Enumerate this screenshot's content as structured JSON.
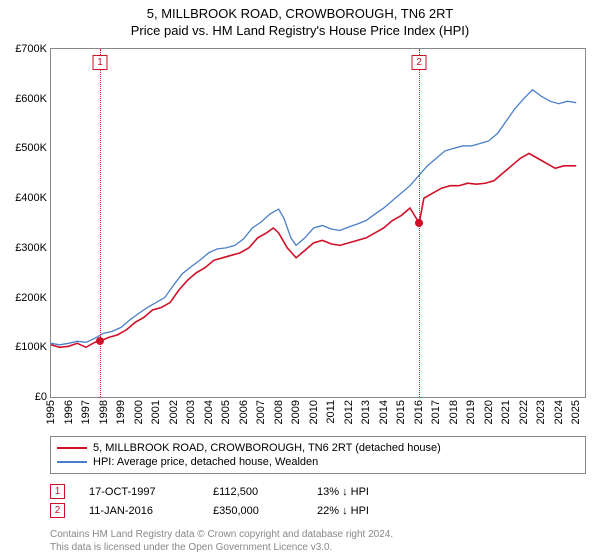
{
  "title": {
    "line1": "5, MILLBROOK ROAD, CROWBOROUGH, TN6 2RT",
    "line2": "Price paid vs. HM Land Registry's House Price Index (HPI)"
  },
  "chart": {
    "type": "line",
    "background_color": "#ffffff",
    "border_color": "#888888",
    "x_min": 1995,
    "x_max": 2025.5,
    "y_min": 0,
    "y_max": 700000,
    "y_ticks": [
      0,
      100000,
      200000,
      300000,
      400000,
      500000,
      600000,
      700000
    ],
    "y_tick_labels": [
      "£0",
      "£100K",
      "£200K",
      "£300K",
      "£400K",
      "£500K",
      "£600K",
      "£700K"
    ],
    "x_ticks": [
      1995,
      1996,
      1997,
      1998,
      1999,
      2000,
      2001,
      2002,
      2003,
      2004,
      2005,
      2006,
      2007,
      2008,
      2009,
      2010,
      2011,
      2012,
      2013,
      2014,
      2015,
      2016,
      2017,
      2018,
      2019,
      2020,
      2021,
      2022,
      2023,
      2024,
      2025
    ],
    "series": [
      {
        "name": "price_paid",
        "label": "5, MILLBROOK ROAD, CROWBOROUGH, TN6 2RT (detached house)",
        "color": "#d01027",
        "line_width": 1.6,
        "data": [
          [
            1995.0,
            105000
          ],
          [
            1995.5,
            100000
          ],
          [
            1996.0,
            102000
          ],
          [
            1996.5,
            108000
          ],
          [
            1997.0,
            100000
          ],
          [
            1997.5,
            110000
          ],
          [
            1997.8,
            112500
          ],
          [
            1998.3,
            120000
          ],
          [
            1998.8,
            125000
          ],
          [
            1999.3,
            135000
          ],
          [
            1999.8,
            150000
          ],
          [
            2000.3,
            160000
          ],
          [
            2000.8,
            175000
          ],
          [
            2001.3,
            180000
          ],
          [
            2001.8,
            190000
          ],
          [
            2002.3,
            215000
          ],
          [
            2002.8,
            235000
          ],
          [
            2003.3,
            250000
          ],
          [
            2003.8,
            260000
          ],
          [
            2004.3,
            275000
          ],
          [
            2004.8,
            280000
          ],
          [
            2005.3,
            285000
          ],
          [
            2005.8,
            290000
          ],
          [
            2006.3,
            300000
          ],
          [
            2006.8,
            320000
          ],
          [
            2007.3,
            330000
          ],
          [
            2007.7,
            340000
          ],
          [
            2008.0,
            330000
          ],
          [
            2008.5,
            300000
          ],
          [
            2009.0,
            280000
          ],
          [
            2009.5,
            295000
          ],
          [
            2010.0,
            310000
          ],
          [
            2010.5,
            315000
          ],
          [
            2011.0,
            308000
          ],
          [
            2011.5,
            305000
          ],
          [
            2012.0,
            310000
          ],
          [
            2012.5,
            315000
          ],
          [
            2013.0,
            320000
          ],
          [
            2013.5,
            330000
          ],
          [
            2014.0,
            340000
          ],
          [
            2014.5,
            355000
          ],
          [
            2015.0,
            365000
          ],
          [
            2015.5,
            380000
          ],
          [
            2016.03,
            350000
          ],
          [
            2016.3,
            400000
          ],
          [
            2016.8,
            410000
          ],
          [
            2017.3,
            420000
          ],
          [
            2017.8,
            425000
          ],
          [
            2018.3,
            425000
          ],
          [
            2018.8,
            430000
          ],
          [
            2019.3,
            428000
          ],
          [
            2019.8,
            430000
          ],
          [
            2020.3,
            435000
          ],
          [
            2020.8,
            450000
          ],
          [
            2021.3,
            465000
          ],
          [
            2021.8,
            480000
          ],
          [
            2022.3,
            490000
          ],
          [
            2022.8,
            480000
          ],
          [
            2023.3,
            470000
          ],
          [
            2023.8,
            460000
          ],
          [
            2024.3,
            465000
          ],
          [
            2024.8,
            465000
          ],
          [
            2025.0,
            465000
          ]
        ]
      },
      {
        "name": "hpi",
        "label": "HPI: Average price, detached house, Wealden",
        "color": "#4a7fc9",
        "line_width": 1.3,
        "data": [
          [
            1995.0,
            108000
          ],
          [
            1995.5,
            105000
          ],
          [
            1996.0,
            108000
          ],
          [
            1996.5,
            112000
          ],
          [
            1997.0,
            110000
          ],
          [
            1997.5,
            118000
          ],
          [
            1998.0,
            128000
          ],
          [
            1998.5,
            132000
          ],
          [
            1999.0,
            140000
          ],
          [
            1999.5,
            155000
          ],
          [
            2000.0,
            168000
          ],
          [
            2000.5,
            180000
          ],
          [
            2001.0,
            190000
          ],
          [
            2001.5,
            200000
          ],
          [
            2002.0,
            225000
          ],
          [
            2002.5,
            248000
          ],
          [
            2003.0,
            262000
          ],
          [
            2003.5,
            275000
          ],
          [
            2004.0,
            290000
          ],
          [
            2004.5,
            298000
          ],
          [
            2005.0,
            300000
          ],
          [
            2005.5,
            305000
          ],
          [
            2006.0,
            318000
          ],
          [
            2006.5,
            340000
          ],
          [
            2007.0,
            352000
          ],
          [
            2007.5,
            368000
          ],
          [
            2008.0,
            378000
          ],
          [
            2008.3,
            360000
          ],
          [
            2008.7,
            320000
          ],
          [
            2009.0,
            305000
          ],
          [
            2009.5,
            320000
          ],
          [
            2010.0,
            340000
          ],
          [
            2010.5,
            345000
          ],
          [
            2011.0,
            338000
          ],
          [
            2011.5,
            335000
          ],
          [
            2012.0,
            342000
          ],
          [
            2012.5,
            348000
          ],
          [
            2013.0,
            355000
          ],
          [
            2013.5,
            368000
          ],
          [
            2014.0,
            380000
          ],
          [
            2014.5,
            395000
          ],
          [
            2015.0,
            410000
          ],
          [
            2015.5,
            425000
          ],
          [
            2016.0,
            445000
          ],
          [
            2016.5,
            465000
          ],
          [
            2017.0,
            480000
          ],
          [
            2017.5,
            495000
          ],
          [
            2018.0,
            500000
          ],
          [
            2018.5,
            505000
          ],
          [
            2019.0,
            505000
          ],
          [
            2019.5,
            510000
          ],
          [
            2020.0,
            515000
          ],
          [
            2020.5,
            530000
          ],
          [
            2021.0,
            555000
          ],
          [
            2021.5,
            580000
          ],
          [
            2022.0,
            600000
          ],
          [
            2022.5,
            618000
          ],
          [
            2023.0,
            605000
          ],
          [
            2023.5,
            595000
          ],
          [
            2024.0,
            590000
          ],
          [
            2024.5,
            595000
          ],
          [
            2025.0,
            592000
          ]
        ]
      }
    ],
    "sale_points": [
      {
        "n": 1,
        "date_label": "17-OCT-1997",
        "x": 1997.8,
        "price": 112500,
        "price_label": "£112,500",
        "diff": "13%",
        "direction": "↓",
        "vs": "HPI",
        "color": "#d01027"
      },
      {
        "n": 2,
        "date_label": "11-JAN-2016",
        "x": 2016.03,
        "price": 350000,
        "price_label": "£350,000",
        "diff": "22%",
        "direction": "↓",
        "vs": "HPI",
        "color": "#d01027"
      }
    ],
    "gridline_color": "#d01027"
  },
  "footer": {
    "line1": "Contains HM Land Registry data © Crown copyright and database right 2024.",
    "line2": "This data is licensed under the Open Government Licence v3.0."
  }
}
